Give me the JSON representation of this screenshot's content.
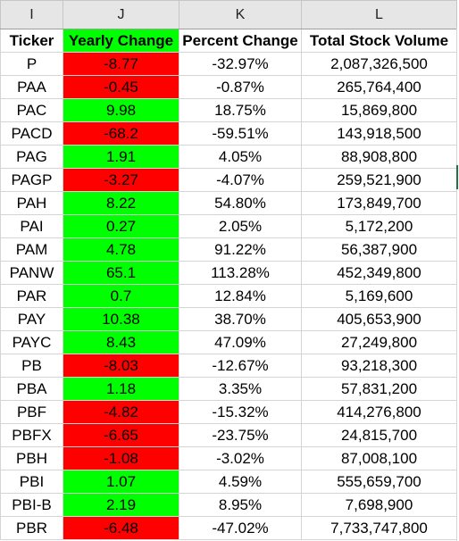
{
  "column_letters": [
    "I",
    "J",
    "K",
    "L"
  ],
  "headers": [
    "Ticker",
    "Yearly Change",
    "Percent Change",
    "Total Stock Volume"
  ],
  "colors": {
    "positive_fill": "#00ff00",
    "negative_fill": "#ff0000",
    "column_header_bg": "#e6e6e6",
    "selection": "#217346"
  },
  "rows": [
    {
      "ticker": "P",
      "yearly_change": "-8.77",
      "percent_change": "-32.97%",
      "total_volume": "2,087,326,500",
      "sign": "neg"
    },
    {
      "ticker": "PAA",
      "yearly_change": "-0.45",
      "percent_change": "-0.87%",
      "total_volume": "265,764,400",
      "sign": "neg"
    },
    {
      "ticker": "PAC",
      "yearly_change": "9.98",
      "percent_change": "18.75%",
      "total_volume": "15,869,800",
      "sign": "pos"
    },
    {
      "ticker": "PACD",
      "yearly_change": "-68.2",
      "percent_change": "-59.51%",
      "total_volume": "143,918,500",
      "sign": "neg"
    },
    {
      "ticker": "PAG",
      "yearly_change": "1.91",
      "percent_change": "4.05%",
      "total_volume": "88,908,800",
      "sign": "pos"
    },
    {
      "ticker": "PAGP",
      "yearly_change": "-3.27",
      "percent_change": "-4.07%",
      "total_volume": "259,521,900",
      "sign": "neg"
    },
    {
      "ticker": "PAH",
      "yearly_change": "8.22",
      "percent_change": "54.80%",
      "total_volume": "173,849,700",
      "sign": "pos"
    },
    {
      "ticker": "PAI",
      "yearly_change": "0.27",
      "percent_change": "2.05%",
      "total_volume": "5,172,200",
      "sign": "pos"
    },
    {
      "ticker": "PAM",
      "yearly_change": "4.78",
      "percent_change": "91.22%",
      "total_volume": "56,387,900",
      "sign": "pos"
    },
    {
      "ticker": "PANW",
      "yearly_change": "65.1",
      "percent_change": "113.28%",
      "total_volume": "452,349,800",
      "sign": "pos"
    },
    {
      "ticker": "PAR",
      "yearly_change": "0.7",
      "percent_change": "12.84%",
      "total_volume": "5,169,600",
      "sign": "pos"
    },
    {
      "ticker": "PAY",
      "yearly_change": "10.38",
      "percent_change": "38.70%",
      "total_volume": "405,653,900",
      "sign": "pos"
    },
    {
      "ticker": "PAYC",
      "yearly_change": "8.43",
      "percent_change": "47.09%",
      "total_volume": "27,249,800",
      "sign": "pos"
    },
    {
      "ticker": "PB",
      "yearly_change": "-8.03",
      "percent_change": "-12.67%",
      "total_volume": "93,218,300",
      "sign": "neg"
    },
    {
      "ticker": "PBA",
      "yearly_change": "1.18",
      "percent_change": "3.35%",
      "total_volume": "57,831,200",
      "sign": "pos"
    },
    {
      "ticker": "PBF",
      "yearly_change": "-4.82",
      "percent_change": "-15.32%",
      "total_volume": "414,276,800",
      "sign": "neg"
    },
    {
      "ticker": "PBFX",
      "yearly_change": "-6.65",
      "percent_change": "-23.75%",
      "total_volume": "24,815,700",
      "sign": "neg"
    },
    {
      "ticker": "PBH",
      "yearly_change": "-1.08",
      "percent_change": "-3.02%",
      "total_volume": "87,008,100",
      "sign": "neg"
    },
    {
      "ticker": "PBI",
      "yearly_change": "1.07",
      "percent_change": "4.59%",
      "total_volume": "555,659,700",
      "sign": "pos"
    },
    {
      "ticker": "PBI-B",
      "yearly_change": "2.19",
      "percent_change": "8.95%",
      "total_volume": "7,698,900",
      "sign": "pos"
    },
    {
      "ticker": "PBR",
      "yearly_change": "-6.48",
      "percent_change": "-47.02%",
      "total_volume": "7,733,747,800",
      "sign": "neg"
    }
  ]
}
